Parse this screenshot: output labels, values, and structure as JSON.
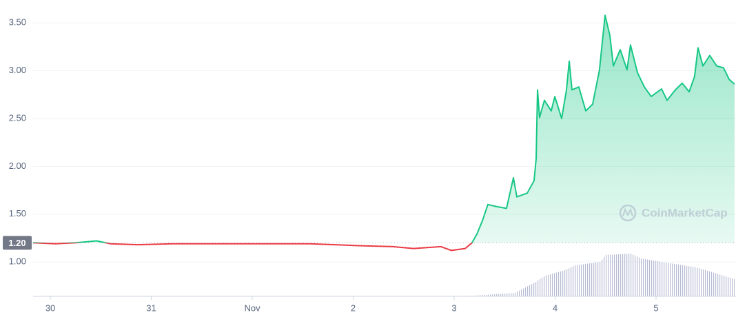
{
  "chart_data": {
    "type": "line",
    "x": [
      -0.171,
      0.048,
      0.253,
      0.457,
      0.594,
      0.867,
      1.208,
      1.549,
      1.891,
      2.232,
      2.573,
      3.051,
      3.392,
      3.597,
      3.87,
      3.973,
      4.109,
      4.177,
      4.225,
      4.28,
      4.334,
      4.416,
      4.519,
      4.587,
      4.621,
      4.724,
      4.792,
      4.812,
      4.826,
      4.846,
      4.894,
      4.962,
      4.997,
      5.065,
      5.113,
      5.14,
      5.167,
      5.235,
      5.304,
      5.372,
      5.44,
      5.495,
      5.543,
      5.577,
      5.645,
      5.713,
      5.747,
      5.816,
      5.884,
      5.952,
      6.055,
      6.109,
      6.191,
      6.259,
      6.328,
      6.382,
      6.416,
      6.464,
      6.532,
      6.601,
      6.669,
      6.724,
      6.778
    ],
    "series": [
      {
        "color": "#16c784",
        "down_color": "#ea3943",
        "values": [
          1.2,
          1.19,
          1.2,
          1.22,
          1.19,
          1.18,
          1.19,
          1.19,
          1.19,
          1.19,
          1.19,
          1.17,
          1.16,
          1.14,
          1.16,
          1.12,
          1.14,
          1.2,
          1.29,
          1.43,
          1.6,
          1.58,
          1.56,
          1.88,
          1.68,
          1.72,
          1.85,
          2.08,
          2.8,
          2.51,
          2.69,
          2.58,
          2.73,
          2.5,
          2.8,
          3.1,
          2.8,
          2.83,
          2.58,
          2.65,
          3.01,
          3.58,
          3.37,
          3.05,
          3.22,
          3.01,
          3.27,
          2.98,
          2.83,
          2.73,
          2.81,
          2.69,
          2.8,
          2.87,
          2.78,
          2.94,
          3.24,
          3.05,
          3.16,
          3.05,
          3.03,
          2.91,
          2.86
        ]
      }
    ],
    "baseline": {
      "value": 1.2,
      "label": "1.20"
    },
    "volume": {
      "color": "#c9cde0",
      "x": [
        4.1,
        4.3,
        4.6,
        4.8,
        4.9,
        5.1,
        5.2,
        5.45,
        5.5,
        5.75,
        5.85,
        6.05,
        6.4,
        6.778
      ],
      "values": [
        0,
        2,
        5,
        20,
        30,
        38,
        45,
        50,
        60,
        62,
        55,
        50,
        42,
        25
      ],
      "lim": [
        0,
        100
      ]
    },
    "xlim": [
      -0.171,
      6.792
    ],
    "xticks": [
      {
        "value": 0,
        "label": "30"
      },
      {
        "value": 1,
        "label": "31"
      },
      {
        "value": 2,
        "label": "Nov"
      },
      {
        "value": 3,
        "label": "2"
      },
      {
        "value": 4,
        "label": "3"
      },
      {
        "value": 5,
        "label": "4"
      },
      {
        "value": 6,
        "label": "5"
      }
    ],
    "ylim": [
      0.64,
      3.74
    ],
    "yticks": [
      {
        "value": 1,
        "label": "1.00"
      },
      {
        "value": 1.5,
        "label": "1.50"
      },
      {
        "value": 2,
        "label": "2.00"
      },
      {
        "value": 2.5,
        "label": "2.50"
      },
      {
        "value": 3,
        "label": "3.00"
      },
      {
        "value": 3.5,
        "label": "3.50"
      }
    ],
    "grid": true,
    "watermark": "CoinMarketCap"
  }
}
